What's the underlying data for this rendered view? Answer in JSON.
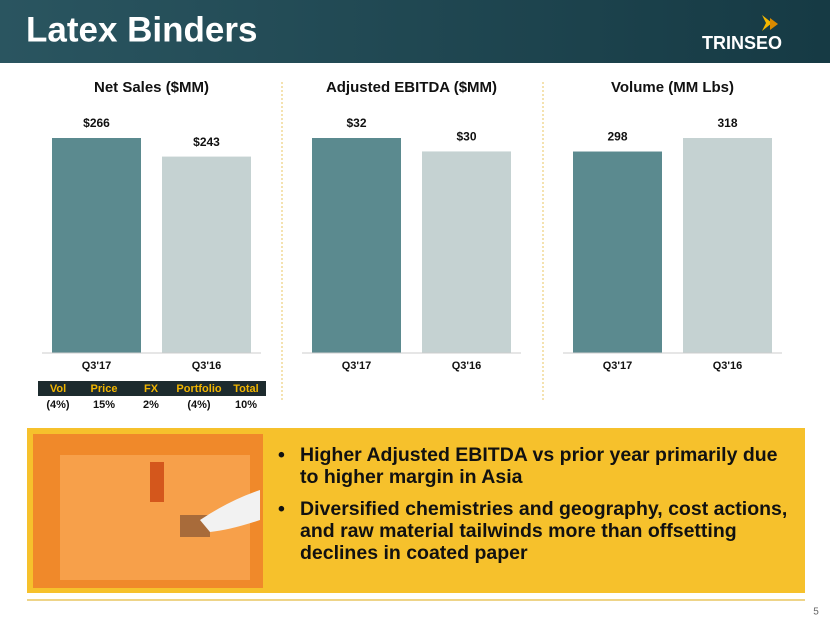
{
  "header": {
    "title": "Latex Binders",
    "logo": "TRINSEO"
  },
  "chart_data": [
    {
      "type": "bar",
      "title": "Net Sales ($MM)",
      "categories": [
        "Q3'17",
        "Q3'16"
      ],
      "values": [
        266,
        243
      ],
      "value_labels": [
        "$266",
        "$243"
      ],
      "colors": [
        "#5b8a8f",
        "#c5d2d2"
      ]
    },
    {
      "type": "bar",
      "title": "Adjusted EBITDA ($MM)",
      "categories": [
        "Q3'17",
        "Q3'16"
      ],
      "values": [
        32,
        30
      ],
      "value_labels": [
        "$32",
        "$30"
      ],
      "colors": [
        "#5b8a8f",
        "#c5d2d2"
      ]
    },
    {
      "type": "bar",
      "title": "Volume (MM Lbs)",
      "categories": [
        "Q3'17",
        "Q3'16"
      ],
      "values": [
        298,
        318
      ],
      "colors": [
        "#5b8a8f",
        "#c5d2d2"
      ]
    }
  ],
  "table": {
    "header": [
      "Vol",
      "Price",
      "FX",
      "Portfolio",
      "Total"
    ],
    "rows": [
      [
        "(4%)",
        "15%",
        "2%",
        "(4%)",
        "10%"
      ]
    ]
  },
  "bullets": [
    "Higher Adjusted EBITDA vs prior year primarily due to higher margin in Asia",
    "Diversified chemistries and geography, cost actions, and raw material tailwinds more than offsetting declines in coated paper"
  ],
  "page_number": "5"
}
